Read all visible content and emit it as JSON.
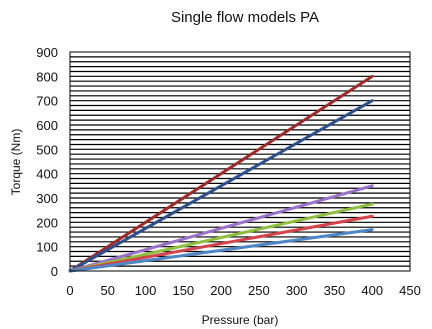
{
  "chart_data": {
    "type": "line",
    "title": "Single flow models PA",
    "xlabel": "Pressure (bar)",
    "ylabel": "Torque (Nm)",
    "xlim": [
      0,
      450
    ],
    "ylim": [
      0,
      900
    ],
    "x_ticks": [
      0,
      50,
      100,
      150,
      200,
      250,
      300,
      350,
      400,
      450
    ],
    "y_ticks": [
      0,
      100,
      200,
      300,
      400,
      500,
      600,
      700,
      800,
      900
    ],
    "grid": "horizontal",
    "grid_step": 20,
    "legend": "none",
    "series": [
      {
        "color": "#9c2b2b",
        "x": [
          0,
          400
        ],
        "y": [
          0,
          800
        ]
      },
      {
        "color": "#2f4f8a",
        "x": [
          0,
          400
        ],
        "y": [
          0,
          700
        ]
      },
      {
        "color": "#9a72c8",
        "x": [
          0,
          400
        ],
        "y": [
          0,
          350
        ]
      },
      {
        "color": "#8fbf3f",
        "x": [
          0,
          400
        ],
        "y": [
          0,
          275
        ]
      },
      {
        "color": "#d4444c",
        "x": [
          0,
          400
        ],
        "y": [
          0,
          225
        ]
      },
      {
        "color": "#4f86c6",
        "x": [
          0,
          400
        ],
        "y": [
          0,
          170
        ]
      }
    ]
  }
}
